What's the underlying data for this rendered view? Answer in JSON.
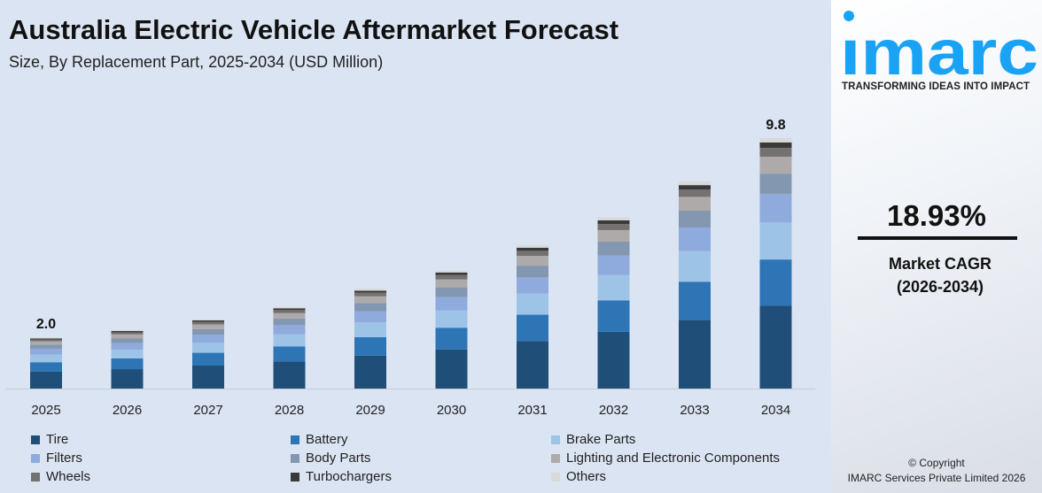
{
  "title": "Australia Electric Vehicle Aftermarket Forecast",
  "subtitle": "Size, By Replacement Part, 2025-2034 (USD Million)",
  "chart_data": {
    "type": "bar",
    "stacked": true,
    "categories": [
      "2025",
      "2026",
      "2027",
      "2028",
      "2029",
      "2030",
      "2031",
      "2032",
      "2033",
      "2034"
    ],
    "series": [
      {
        "name": "Tire",
        "color": "#1f4e79",
        "values": [
          0.66,
          0.76,
          0.9,
          1.06,
          1.29,
          1.53,
          1.86,
          2.22,
          2.69,
          3.25
        ]
      },
      {
        "name": "Battery",
        "color": "#2e75b6",
        "values": [
          0.37,
          0.42,
          0.5,
          0.59,
          0.72,
          0.85,
          1.03,
          1.23,
          1.49,
          1.8
        ]
      },
      {
        "name": "Brake Parts",
        "color": "#9dc3e6",
        "values": [
          0.3,
          0.34,
          0.4,
          0.47,
          0.58,
          0.68,
          0.83,
          0.99,
          1.2,
          1.45
        ]
      },
      {
        "name": "Filters",
        "color": "#8faadc",
        "values": [
          0.23,
          0.26,
          0.31,
          0.36,
          0.44,
          0.52,
          0.63,
          0.76,
          0.92,
          1.11
        ]
      },
      {
        "name": "Body Parts",
        "color": "#8497b0",
        "values": [
          0.16,
          0.19,
          0.22,
          0.26,
          0.32,
          0.38,
          0.46,
          0.55,
          0.66,
          0.8
        ]
      },
      {
        "name": "Lighting and Electronic Components",
        "color": "#aeaaaa",
        "values": [
          0.13,
          0.15,
          0.18,
          0.21,
          0.26,
          0.31,
          0.38,
          0.45,
          0.54,
          0.66
        ]
      },
      {
        "name": "Wheels",
        "color": "#757171",
        "values": [
          0.07,
          0.08,
          0.1,
          0.12,
          0.14,
          0.17,
          0.2,
          0.24,
          0.29,
          0.35
        ]
      },
      {
        "name": "Turbochargers",
        "color": "#3a3a3a",
        "values": [
          0.04,
          0.05,
          0.06,
          0.07,
          0.08,
          0.1,
          0.12,
          0.14,
          0.17,
          0.21
        ]
      },
      {
        "name": "Others",
        "color": "#d9d9d9",
        "values": [
          0.04,
          0.05,
          0.03,
          0.06,
          0.07,
          0.06,
          0.09,
          0.12,
          0.14,
          0.17
        ]
      }
    ],
    "data_labels": [
      {
        "category": "2025",
        "text": "2.0"
      },
      {
        "category": "2034",
        "text": "9.8"
      }
    ],
    "ylim": [
      0,
      9.8
    ],
    "grid": false,
    "legend": "bottom"
  },
  "brand": {
    "logo": "imarc",
    "tagline": "TRANSFORMING IDEAS INTO IMPACT",
    "color": "#1aa3f5"
  },
  "cagr": {
    "value": "18.93%",
    "label": "Market CAGR",
    "period": "(2026-2034)"
  },
  "copyright": {
    "line1": "© Copyright",
    "line2": "IMARC Services Private Limited 2026"
  }
}
